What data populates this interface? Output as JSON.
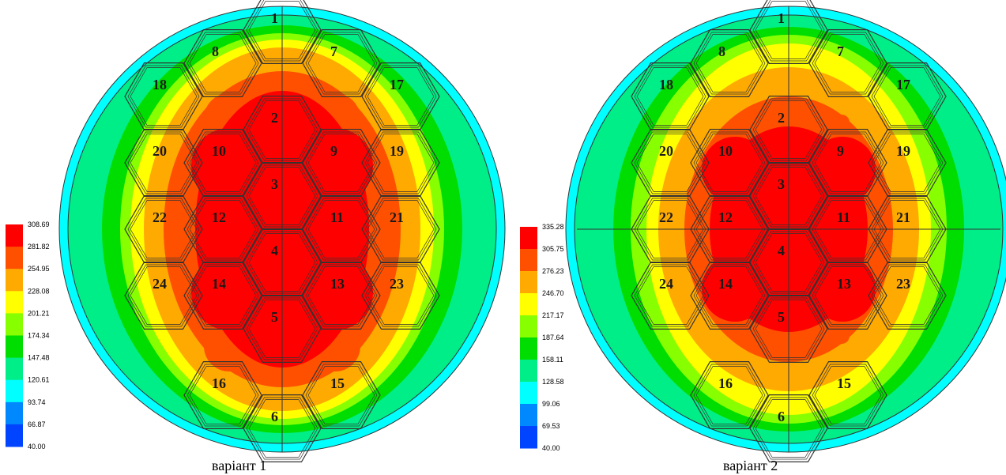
{
  "variants": [
    {
      "caption": "варіант 1",
      "legend": [
        "308.69",
        "281.82",
        "254.95",
        "228.08",
        "201.21",
        "174.34",
        "147.48",
        "120.61",
        "93.74",
        "66.87",
        "40.00"
      ],
      "assemblies": [
        "1",
        "2",
        "3",
        "4",
        "5",
        "6",
        "7",
        "8",
        "9",
        "10",
        "11",
        "12",
        "13",
        "14",
        "15",
        "16",
        "17",
        "18",
        "19",
        "20",
        "21",
        "22",
        "23",
        "24"
      ]
    },
    {
      "caption": "варіант 2",
      "legend": [
        "335.28",
        "305.75",
        "276.23",
        "246.70",
        "217.17",
        "187.64",
        "158.11",
        "128.58",
        "99.06",
        "69.53",
        "40.00"
      ],
      "assemblies": [
        "1",
        "2",
        "3",
        "4",
        "5",
        "6",
        "7",
        "8",
        "9",
        "10",
        "11",
        "12",
        "13",
        "14",
        "15",
        "16",
        "17",
        "18",
        "19",
        "20",
        "21",
        "22",
        "23",
        "24"
      ]
    }
  ],
  "palette": [
    "#ff0000",
    "#ff5000",
    "#ffaa00",
    "#ffff00",
    "#88ff00",
    "#00dd00",
    "#00ee88",
    "#00ffff",
    "#0088ff",
    "#0044ff",
    "#0000dd"
  ]
}
